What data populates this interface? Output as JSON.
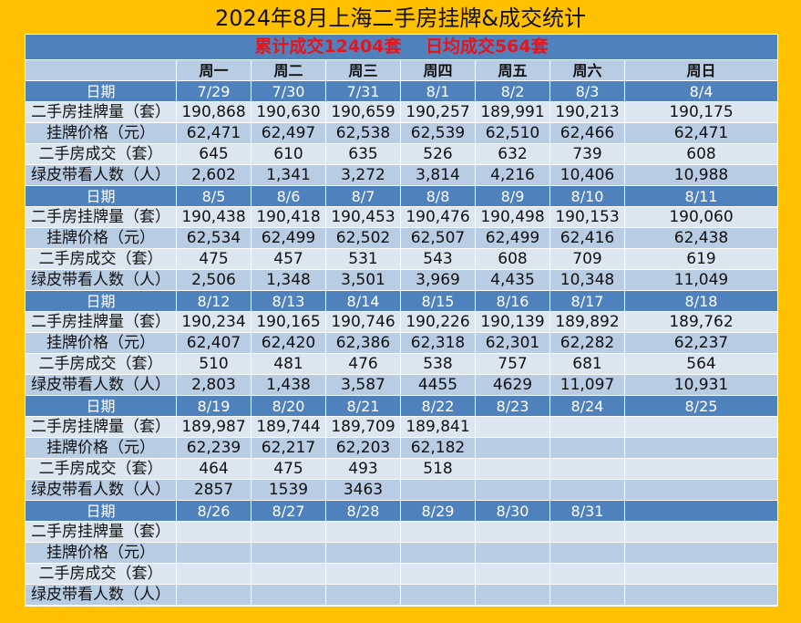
{
  "title": "2024年8月上海二手房挂牌&成交统计",
  "summary": {
    "total": "累计成交12404套",
    "daily": "日均成交564套"
  },
  "weekdays": [
    "周一",
    "周二",
    "周三",
    "周四",
    "周五",
    "周六",
    "周日"
  ],
  "labels": {
    "date": "日期",
    "listings": "二手房挂牌量（套）",
    "price": "挂牌价格（元）",
    "deals": "二手房成交（套）",
    "viewers": "绿皮带看人数（人）"
  },
  "weeks": [
    {
      "dates": [
        "7/29",
        "7/30",
        "7/31",
        "8/1",
        "8/2",
        "8/3",
        "8/4"
      ],
      "listings": [
        "190,868",
        "190,630",
        "190,659",
        "190,257",
        "189,991",
        "190,213",
        "190,175"
      ],
      "price": [
        "62,471",
        "62,497",
        "62,538",
        "62,539",
        "62,510",
        "62,466",
        "62,471"
      ],
      "deals": [
        "645",
        "610",
        "635",
        "526",
        "632",
        "739",
        "608"
      ],
      "viewers": [
        "2,602",
        "1,341",
        "3,272",
        "3,814",
        "4,216",
        "10,406",
        "10,988"
      ]
    },
    {
      "dates": [
        "8/5",
        "8/6",
        "8/7",
        "8/8",
        "8/9",
        "8/10",
        "8/11"
      ],
      "listings": [
        "190,438",
        "190,418",
        "190,453",
        "190,476",
        "190,498",
        "190,153",
        "190,060"
      ],
      "price": [
        "62,534",
        "62,499",
        "62,502",
        "62,507",
        "62,499",
        "62,416",
        "62,438"
      ],
      "deals": [
        "475",
        "457",
        "531",
        "543",
        "608",
        "709",
        "619"
      ],
      "viewers": [
        "2,506",
        "1,348",
        "3,501",
        "3,969",
        "4,435",
        "10,348",
        "11,049"
      ]
    },
    {
      "dates": [
        "8/12",
        "8/13",
        "8/14",
        "8/15",
        "8/16",
        "8/17",
        "8/18"
      ],
      "listings": [
        "190,234",
        "190,165",
        "190,746",
        "190,226",
        "190,139",
        "189,892",
        "189,762"
      ],
      "price": [
        "62,407",
        "62,420",
        "62,386",
        "62,318",
        "62,301",
        "62,282",
        "62,237"
      ],
      "deals": [
        "510",
        "481",
        "476",
        "538",
        "757",
        "681",
        "564"
      ],
      "viewers": [
        "2,803",
        "1,438",
        "3,587",
        "4455",
        "4629",
        "11,097",
        "10,931"
      ]
    },
    {
      "dates": [
        "8/19",
        "8/20",
        "8/21",
        "8/22",
        "8/23",
        "8/24",
        "8/25"
      ],
      "listings": [
        "189,987",
        "189,744",
        "189,709",
        "189,841",
        "",
        "",
        ""
      ],
      "price": [
        "62,239",
        "62,217",
        "62,203",
        "62,182",
        "",
        "",
        ""
      ],
      "deals": [
        "464",
        "475",
        "493",
        "518",
        "",
        "",
        ""
      ],
      "viewers": [
        "2857",
        "1539",
        "3463",
        "",
        "",
        "",
        ""
      ]
    },
    {
      "dates": [
        "8/26",
        "8/27",
        "8/28",
        "8/29",
        "8/30",
        "8/31",
        ""
      ],
      "listings": [
        "",
        "",
        "",
        "",
        "",
        "",
        ""
      ],
      "price": [
        "",
        "",
        "",
        "",
        "",
        "",
        ""
      ],
      "deals": [
        "",
        "",
        "",
        "",
        "",
        "",
        ""
      ],
      "viewers": [
        "",
        "",
        "",
        "",
        "",
        "",
        ""
      ]
    }
  ]
}
